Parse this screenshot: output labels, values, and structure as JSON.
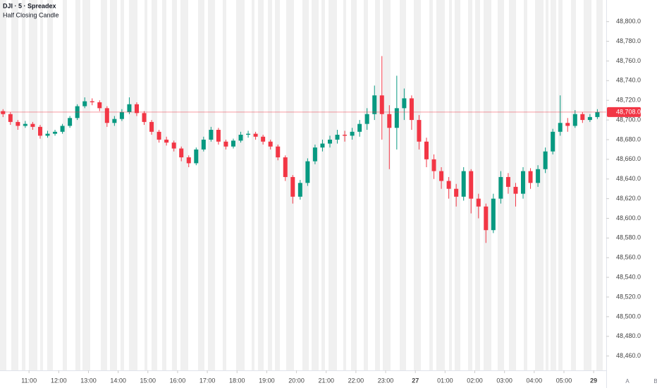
{
  "chart_data": {
    "type": "candlestick",
    "title": "DJI · 5 · Spreadex",
    "subtitle": "Half Closing Candle",
    "up_color": "#089981",
    "down_color": "#f23645",
    "xlim": [
      0,
      20.4
    ],
    "ylim": [
      48449,
      48822
    ],
    "xticks": [
      {
        "value": 1,
        "label": "11:00"
      },
      {
        "value": 2,
        "label": "12:00"
      },
      {
        "value": 3,
        "label": "13:00"
      },
      {
        "value": 4,
        "label": "14:00"
      },
      {
        "value": 5,
        "label": "15:00"
      },
      {
        "value": 6,
        "label": "16:00"
      },
      {
        "value": 7,
        "label": "17:00"
      },
      {
        "value": 8,
        "label": "18:00"
      },
      {
        "value": 9,
        "label": "19:00"
      },
      {
        "value": 10,
        "label": "20:00"
      },
      {
        "value": 11,
        "label": "21:00"
      },
      {
        "value": 12,
        "label": "22:00"
      },
      {
        "value": 13,
        "label": "23:00"
      },
      {
        "value": 14,
        "label": "27"
      },
      {
        "value": 15,
        "label": "01:00"
      },
      {
        "value": 16,
        "label": "02:00"
      },
      {
        "value": 17,
        "label": "03:00"
      },
      {
        "value": 18,
        "label": "04:00"
      },
      {
        "value": 19,
        "label": "05:00"
      },
      {
        "value": 20,
        "label": "29"
      }
    ],
    "yticks": [
      {
        "value": 48460,
        "label": "48,460.0"
      },
      {
        "value": 48480,
        "label": "48,480.0"
      },
      {
        "value": 48500,
        "label": "48,500.0"
      },
      {
        "value": 48520,
        "label": "48,520.0"
      },
      {
        "value": 48540,
        "label": "48,540.0"
      },
      {
        "value": 48560,
        "label": "48,560.0"
      },
      {
        "value": 48580,
        "label": "48,580.0"
      },
      {
        "value": 48600,
        "label": "48,600.0"
      },
      {
        "value": 48620,
        "label": "48,620.0"
      },
      {
        "value": 48640,
        "label": "48,640.0"
      },
      {
        "value": 48660,
        "label": "48,660.0"
      },
      {
        "value": 48680,
        "label": "48,680.0"
      },
      {
        "value": 48700,
        "label": "48,700.0"
      },
      {
        "value": 48720,
        "label": "48,720.0"
      },
      {
        "value": 48740,
        "label": "48,740.0"
      },
      {
        "value": 48760,
        "label": "48,760.0"
      },
      {
        "value": 48780,
        "label": "48,780.0"
      },
      {
        "value": 48800,
        "label": "48,800.0"
      }
    ],
    "last_price": {
      "value": 48708,
      "label": "48,708.0",
      "color": "#f23645"
    },
    "buttons": [
      "A",
      "B"
    ],
    "x": [
      0.125,
      0.375,
      0.625,
      0.875,
      1.125,
      1.375,
      1.625,
      1.875,
      2.125,
      2.375,
      2.625,
      2.875,
      3.125,
      3.375,
      3.625,
      3.875,
      4.125,
      4.375,
      4.625,
      4.875,
      5.125,
      5.375,
      5.625,
      5.875,
      6.125,
      6.375,
      6.625,
      6.875,
      7.125,
      7.375,
      7.625,
      7.875,
      8.125,
      8.375,
      8.625,
      8.875,
      9.125,
      9.375,
      9.625,
      9.875,
      10.125,
      10.375,
      10.625,
      10.875,
      11.125,
      11.375,
      11.625,
      11.875,
      12.125,
      12.375,
      12.625,
      12.875,
      13.125,
      13.375,
      13.625,
      13.875,
      14.125,
      14.375,
      14.625,
      14.875,
      15.125,
      15.375,
      15.625,
      15.875,
      16.125,
      16.375,
      16.625,
      16.875,
      17.125,
      17.375,
      17.625,
      17.875,
      18.125,
      18.375,
      18.625,
      18.875,
      19.125,
      19.375,
      19.625,
      19.875,
      20.125
    ],
    "open": [
      48709,
      48706,
      48698,
      48694,
      48696,
      48693,
      48684,
      48686,
      48688,
      48694,
      48702,
      48714,
      48719,
      48718,
      48712,
      48697,
      48701,
      48708,
      48716,
      48707,
      48698,
      48688,
      48680,
      48677,
      48671,
      48662,
      48656,
      48670,
      48680,
      48690,
      48678,
      48673,
      48679,
      48685,
      48686,
      48683,
      48678,
      48673,
      48662,
      48642,
      48622,
      48636,
      48658,
      48672,
      48676,
      48680,
      48685,
      48684,
      48688,
      48696,
      48706,
      48725,
      48706,
      48692,
      48712,
      48722,
      48700,
      48678,
      48660,
      48648,
      48638,
      48630,
      48622,
      48648,
      48620,
      48612,
      48588,
      48620,
      48642,
      48632,
      48625,
      48648,
      48636,
      48650,
      48668,
      48688,
      48697,
      48694,
      48706,
      48700,
      48703
    ],
    "high": [
      48711,
      48708,
      48700,
      48699,
      48698,
      48695,
      48689,
      48690,
      48696,
      48704,
      48716,
      48723,
      48722,
      48720,
      48714,
      48704,
      48711,
      48723,
      48718,
      48709,
      48700,
      48690,
      48683,
      48679,
      48673,
      48664,
      48672,
      48683,
      48693,
      48692,
      48680,
      48681,
      48688,
      48689,
      48688,
      48685,
      48680,
      48675,
      48664,
      48644,
      48639,
      48661,
      48675,
      48680,
      48684,
      48690,
      48689,
      48692,
      48700,
      48712,
      48735,
      48765,
      48715,
      48745,
      48732,
      48725,
      48705,
      48682,
      48665,
      48652,
      48642,
      48635,
      48652,
      48650,
      48625,
      48615,
      48625,
      48648,
      48646,
      48636,
      48652,
      48651,
      48654,
      48672,
      48691,
      48725,
      48702,
      48710,
      48708,
      48706,
      48711
    ],
    "low": [
      48703,
      48695,
      48690,
      48692,
      48690,
      48681,
      48682,
      48684,
      48686,
      48692,
      48700,
      48712,
      48715,
      48709,
      48693,
      48694,
      48699,
      48706,
      48704,
      48695,
      48685,
      48677,
      48674,
      48668,
      48658,
      48652,
      48654,
      48668,
      48678,
      48675,
      48670,
      48671,
      48677,
      48682,
      48680,
      48675,
      48670,
      48659,
      48638,
      48615,
      48619,
      48633,
      48655,
      48668,
      48672,
      48676,
      48678,
      48680,
      48683,
      48690,
      48700,
      48680,
      48650,
      48670,
      48700,
      48690,
      48670,
      48652,
      48640,
      48630,
      48620,
      48612,
      48618,
      48605,
      48600,
      48575,
      48585,
      48615,
      48625,
      48612,
      48620,
      48630,
      48632,
      48646,
      48665,
      48684,
      48688,
      48692,
      48697,
      48698,
      48701
    ],
    "close": [
      48706,
      48698,
      48694,
      48696,
      48693,
      48684,
      48686,
      48688,
      48694,
      48702,
      48714,
      48719,
      48718,
      48712,
      48697,
      48701,
      48708,
      48716,
      48707,
      48698,
      48688,
      48680,
      48677,
      48671,
      48662,
      48656,
      48670,
      48680,
      48690,
      48678,
      48673,
      48679,
      48685,
      48686,
      48683,
      48678,
      48673,
      48662,
      48642,
      48622,
      48636,
      48658,
      48672,
      48676,
      48680,
      48685,
      48684,
      48688,
      48696,
      48706,
      48725,
      48706,
      48692,
      48712,
      48722,
      48700,
      48678,
      48660,
      48648,
      48638,
      48630,
      48622,
      48648,
      48620,
      48612,
      48588,
      48620,
      48642,
      48632,
      48625,
      48648,
      48636,
      48650,
      48668,
      48688,
      48697,
      48694,
      48706,
      48700,
      48703,
      48708
    ]
  }
}
